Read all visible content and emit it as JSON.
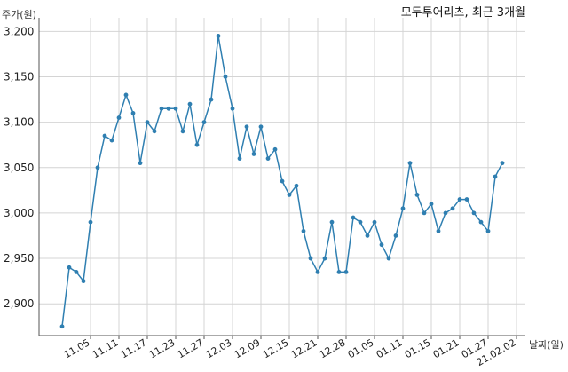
{
  "chart_data": {
    "type": "line",
    "title": "모두투어리츠, 최근 3개월",
    "ylabel": "주가(원)",
    "xlabel": "날짜(일)",
    "ylim": [
      2865,
      3215
    ],
    "yticks": [
      2900,
      2950,
      3000,
      3050,
      3100,
      3150,
      3200
    ],
    "ytick_labels": [
      "2,900",
      "2,950",
      "3,000",
      "3,050",
      "3,100",
      "3,150",
      "3,200"
    ],
    "xtick_labels": [
      "11.05",
      "11.11",
      "11.17",
      "11.23",
      "11.27",
      "12.03",
      "12.09",
      "12.15",
      "12.21",
      "12.28",
      "01.05",
      "01.11",
      "01.15",
      "01.21",
      "01.27",
      "21.02.02"
    ],
    "xtick_index": [
      4,
      8,
      12,
      16,
      20,
      24,
      28,
      32,
      36,
      40,
      44,
      48,
      52,
      56,
      60,
      64
    ],
    "grid": true,
    "color": "#2f7fb1",
    "series": [
      {
        "values": [
          2875,
          2940,
          2935,
          2925,
          2990,
          3050,
          3085,
          3080,
          3105,
          3130,
          3110,
          3055,
          3100,
          3090,
          3115,
          3115,
          3115,
          3090,
          3120,
          3075,
          3100,
          3125,
          3195,
          3150,
          3115,
          3060,
          3095,
          3065,
          3095,
          3060,
          3070,
          3035,
          3020,
          3030,
          2980,
          2950,
          2935,
          2950,
          2990,
          2935,
          2935,
          2995,
          2990,
          2975,
          2990,
          2965,
          2950,
          2975,
          3005,
          3055,
          3020,
          3000,
          3010,
          2980,
          3000,
          3005,
          3015,
          3015,
          3000,
          2990,
          2980,
          3040,
          3055
        ]
      }
    ]
  }
}
